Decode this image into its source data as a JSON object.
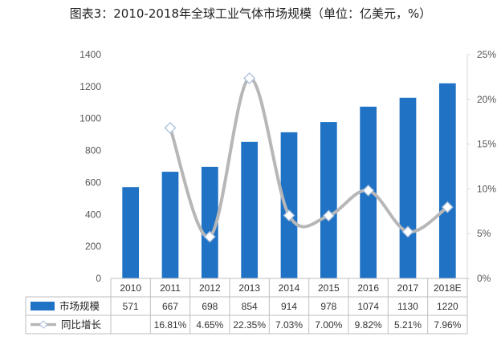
{
  "chart_data": {
    "type": "bar",
    "title": "图表3：2010-2018年全球工业气体市场规模（单位：亿美元，%）",
    "categories": [
      "2010",
      "2011",
      "2012",
      "2013",
      "2014",
      "2015",
      "2016",
      "2017",
      "2018E"
    ],
    "series": [
      {
        "name": "市场规模",
        "type": "bar",
        "axis": "left",
        "color": "#1f72c4",
        "values": [
          571,
          667,
          698,
          854,
          914,
          978,
          1074,
          1130,
          1220
        ],
        "labels": [
          "571",
          "667",
          "698",
          "854",
          "914",
          "978",
          "1074",
          "1130",
          "1220"
        ]
      },
      {
        "name": "同比增长",
        "type": "line",
        "axis": "right",
        "color": "#b7b7b7",
        "values": [
          null,
          16.81,
          4.65,
          22.35,
          7.03,
          7.0,
          9.82,
          5.21,
          7.96
        ],
        "labels": [
          "",
          "16.81%",
          "4.65%",
          "22.35%",
          "7.03%",
          "7.00%",
          "9.82%",
          "5.21%",
          "7.96%"
        ]
      }
    ],
    "y_left": {
      "min": 0,
      "max": 1400,
      "step": 200,
      "ticks": [
        "0",
        "200",
        "400",
        "600",
        "800",
        "1000",
        "1200",
        "1400"
      ]
    },
    "y_right": {
      "min": 0,
      "max": 25,
      "step": 5,
      "ticks": [
        "0%",
        "5%",
        "10%",
        "15%",
        "20%",
        "25%"
      ]
    },
    "grid": false,
    "legend": "data-table-left"
  }
}
